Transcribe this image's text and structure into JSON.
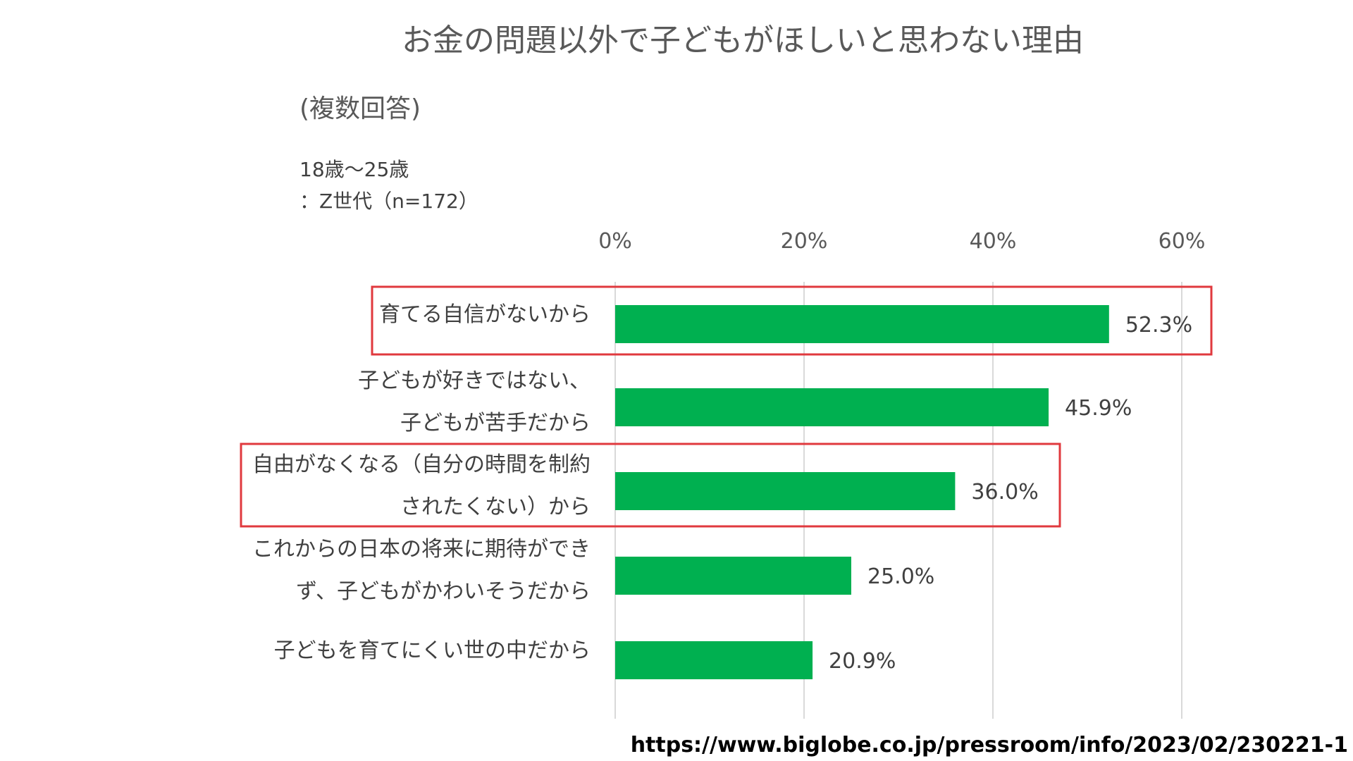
{
  "colors": {
    "bar": "#00b050",
    "highlight": "#e0393e",
    "grid": "#d9d9d9"
  },
  "header": {
    "title": "お金の問題以外で子どもがほしいと思わない理由",
    "subtitle": "(複数回答)",
    "sample_line1": "18歳～25歳",
    "sample_line2": "：Z世代（n=172）"
  },
  "source": "https://www.biglobe.co.jp/pressroom/info/2023/02/230221-1",
  "chart_data": {
    "type": "bar",
    "orientation": "horizontal",
    "title": "お金の問題以外で子どもがほしいと思わない理由",
    "x_ticks": [
      "0%",
      "20%",
      "40%",
      "60%"
    ],
    "xlim": [
      0,
      60
    ],
    "grid": true,
    "categories": [
      "育てる自信がないから",
      "子どもが好きではない、子どもが苦手だから",
      "自由がなくなる（自分の時間を制約されたくない）から",
      "これからの日本の将来に期待ができず、子どもがかわいそうだから",
      "子どもを育てにくい世の中だから"
    ],
    "category_lines": [
      [
        "育てる自信がないから"
      ],
      [
        "子どもが好きではない、",
        "子どもが苦手だから"
      ],
      [
        "自由がなくなる（自分の時間を制約",
        "されたくない）から"
      ],
      [
        "これからの日本の将来に期待ができ",
        "ず、子どもがかわいそうだから"
      ],
      [
        "子どもを育てにくい世の中だから"
      ]
    ],
    "values": [
      52.3,
      45.9,
      36.0,
      25.0,
      20.9
    ],
    "data_labels": [
      "52.3%",
      "45.9%",
      "36.0%",
      "25.0%",
      "20.9%"
    ],
    "highlighted": [
      0,
      2
    ]
  }
}
